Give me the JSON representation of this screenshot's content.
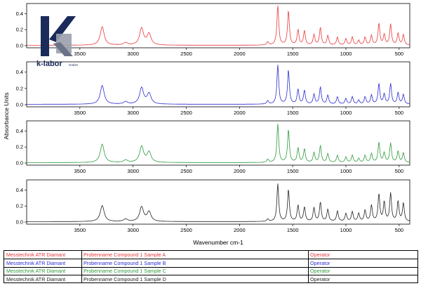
{
  "chart_data": [
    {
      "type": "line",
      "series": [
        {
          "name": "Probenname Compound 1 Sample A",
          "color": "#e8393c"
        }
      ],
      "xlim": [
        4000,
        400
      ],
      "ylim": [
        0,
        0.5
      ],
      "yticks": [
        0.0,
        0.2,
        0.4
      ],
      "xticks": [
        3500,
        3000,
        2500,
        2000,
        1500,
        1000,
        500
      ],
      "peaks": [
        [
          3290,
          0.23
        ],
        [
          3070,
          0.03
        ],
        [
          2920,
          0.21
        ],
        [
          2850,
          0.14
        ],
        [
          1735,
          0.04
        ],
        [
          1640,
          0.5
        ],
        [
          1540,
          0.43
        ],
        [
          1450,
          0.19
        ],
        [
          1390,
          0.18
        ],
        [
          1300,
          0.13
        ],
        [
          1240,
          0.22
        ],
        [
          1170,
          0.12
        ],
        [
          1080,
          0.1
        ],
        [
          1000,
          0.08
        ],
        [
          940,
          0.1
        ],
        [
          880,
          0.06
        ],
        [
          820,
          0.1
        ],
        [
          760,
          0.12
        ],
        [
          690,
          0.27
        ],
        [
          640,
          0.13
        ],
        [
          580,
          0.26
        ],
        [
          510,
          0.15
        ],
        [
          460,
          0.13
        ]
      ]
    },
    {
      "type": "line",
      "series": [
        {
          "name": "Probenname Compound 1 Sample B",
          "color": "#2b2bd0"
        }
      ],
      "xlim": [
        4000,
        400
      ],
      "ylim": [
        0,
        0.5
      ],
      "yticks": [
        0.0,
        0.2,
        0.4
      ],
      "xticks": [
        3500,
        3000,
        2500,
        2000,
        1500,
        1000,
        500
      ],
      "peaks": [
        [
          3290,
          0.23
        ],
        [
          3070,
          0.03
        ],
        [
          2920,
          0.2
        ],
        [
          2850,
          0.13
        ],
        [
          1735,
          0.04
        ],
        [
          1640,
          0.48
        ],
        [
          1540,
          0.42
        ],
        [
          1450,
          0.18
        ],
        [
          1390,
          0.17
        ],
        [
          1300,
          0.12
        ],
        [
          1240,
          0.21
        ],
        [
          1170,
          0.11
        ],
        [
          1080,
          0.09
        ],
        [
          1000,
          0.07
        ],
        [
          940,
          0.09
        ],
        [
          880,
          0.05
        ],
        [
          820,
          0.09
        ],
        [
          760,
          0.11
        ],
        [
          690,
          0.25
        ],
        [
          640,
          0.12
        ],
        [
          580,
          0.25
        ],
        [
          510,
          0.14
        ],
        [
          460,
          0.12
        ]
      ]
    },
    {
      "type": "line",
      "series": [
        {
          "name": "Probenname Compound 1 Sample C",
          "color": "#2e9a3a"
        }
      ],
      "xlim": [
        4000,
        400
      ],
      "ylim": [
        0,
        0.5
      ],
      "yticks": [
        0.0,
        0.2,
        0.4
      ],
      "xticks": [
        3500,
        3000,
        2500,
        2000,
        1500,
        1000,
        500
      ],
      "ylabel": "Absorbance Units",
      "peaks": [
        [
          3290,
          0.23
        ],
        [
          3070,
          0.03
        ],
        [
          2920,
          0.2
        ],
        [
          2850,
          0.13
        ],
        [
          1735,
          0.04
        ],
        [
          1640,
          0.48
        ],
        [
          1540,
          0.41
        ],
        [
          1450,
          0.18
        ],
        [
          1390,
          0.17
        ],
        [
          1300,
          0.12
        ],
        [
          1240,
          0.21
        ],
        [
          1170,
          0.11
        ],
        [
          1080,
          0.09
        ],
        [
          1000,
          0.07
        ],
        [
          940,
          0.09
        ],
        [
          880,
          0.05
        ],
        [
          820,
          0.09
        ],
        [
          760,
          0.11
        ],
        [
          690,
          0.25
        ],
        [
          640,
          0.12
        ],
        [
          580,
          0.24
        ],
        [
          510,
          0.14
        ],
        [
          460,
          0.12
        ]
      ]
    },
    {
      "type": "line",
      "series": [
        {
          "name": "Probenname Compound 1 Sample D",
          "color": "#222222"
        }
      ],
      "xlim": [
        4000,
        400
      ],
      "ylim": [
        0,
        0.5
      ],
      "yticks": [
        0.0,
        0.2,
        0.4
      ],
      "xticks": [
        3500,
        3000,
        2500,
        2000,
        1500,
        1000,
        500
      ],
      "xlabel": "Wavenumber cm-1",
      "peaks": [
        [
          3290,
          0.2
        ],
        [
          3070,
          0.03
        ],
        [
          2920,
          0.18
        ],
        [
          2850,
          0.12
        ],
        [
          1735,
          0.03
        ],
        [
          1640,
          0.47
        ],
        [
          1540,
          0.4
        ],
        [
          1450,
          0.2
        ],
        [
          1390,
          0.18
        ],
        [
          1300,
          0.17
        ],
        [
          1240,
          0.24
        ],
        [
          1170,
          0.15
        ],
        [
          1080,
          0.13
        ],
        [
          1000,
          0.1
        ],
        [
          940,
          0.12
        ],
        [
          880,
          0.1
        ],
        [
          820,
          0.14
        ],
        [
          760,
          0.2
        ],
        [
          690,
          0.34
        ],
        [
          640,
          0.24
        ],
        [
          580,
          0.35
        ],
        [
          510,
          0.25
        ],
        [
          460,
          0.23
        ]
      ]
    }
  ],
  "logo": {
    "text": "k-labor",
    "suffix": "GmbH"
  },
  "legend": {
    "rows": [
      {
        "instrument": "Messtechnik ATR Diamant",
        "sample": "Probenname Compound 1 Sample A",
        "operator": "Operator",
        "color": "#e8393c"
      },
      {
        "instrument": "Messtechnik ATR Diamant",
        "sample": "Probenname Compound 1 Sample B",
        "operator": "Operator",
        "color": "#2b2bd0"
      },
      {
        "instrument": "Messtechnik ATR Diamant",
        "sample": "Probenname Compound 1 Sample C",
        "operator": "Operator",
        "color": "#2e9a3a"
      },
      {
        "instrument": "Messtechnik ATR Diamant",
        "sample": "Probenname Compound 1 Sample D",
        "operator": "Operator",
        "color": "#222222"
      }
    ]
  }
}
